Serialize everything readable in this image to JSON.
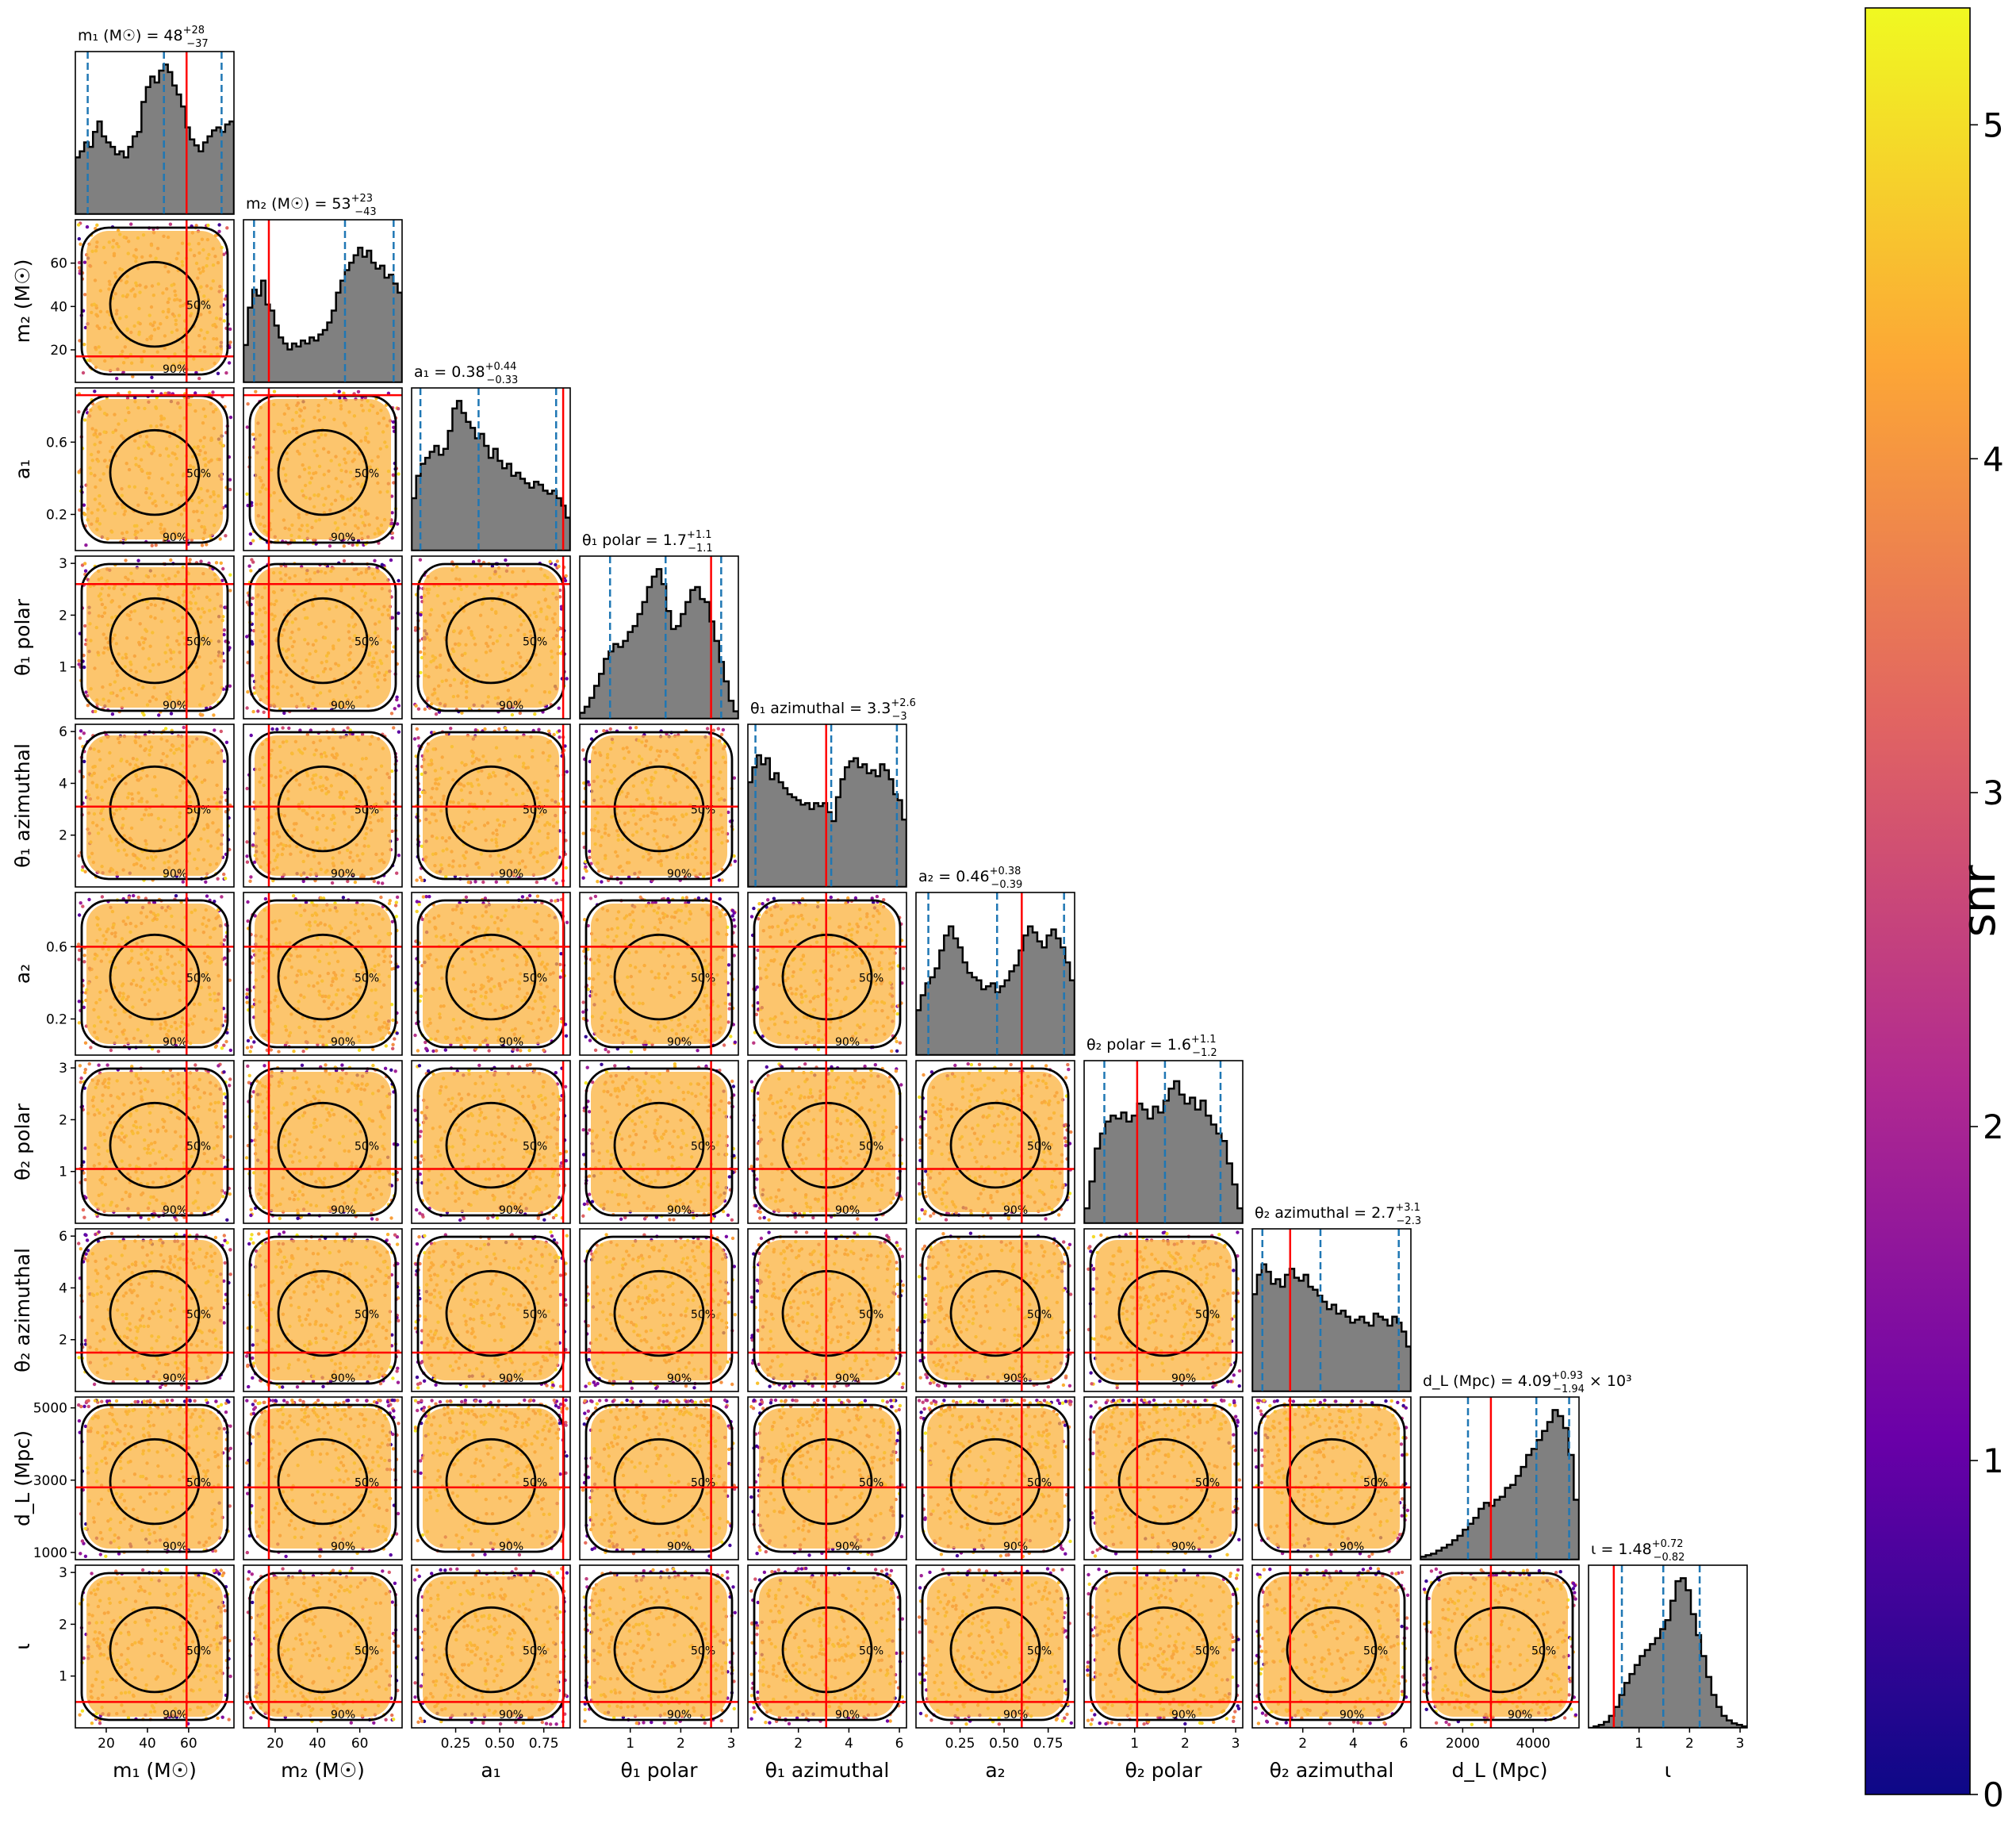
{
  "chart_data": {
    "type": "corner",
    "parameters": [
      {
        "key": "m1",
        "label": "m₁ (M☉)",
        "range": [
          5,
          82
        ],
        "ticks": [
          20,
          40,
          60
        ],
        "truth": 59,
        "title": "m₁ (M☉) = 48",
        "title_sup": "+28",
        "title_sub": "−37",
        "quantiles": [
          11,
          48,
          76
        ]
      },
      {
        "key": "m2",
        "label": "m₂ (M☉)",
        "range": [
          5,
          80
        ],
        "ticks": [
          20,
          40,
          60
        ],
        "truth": 17,
        "title": "m₂ (M☉) = 53",
        "title_sup": "+23",
        "title_sub": "−43",
        "quantiles": [
          10,
          53,
          76
        ]
      },
      {
        "key": "a1",
        "label": "a₁",
        "range": [
          0.0,
          0.9
        ],
        "ticks": [
          0.2,
          0.6
        ],
        "ticks_x": [
          0.25,
          0.5,
          0.75
        ],
        "ticklabels_x": [
          "0.25",
          "0.50",
          "0.75"
        ],
        "truth": 0.86,
        "title": "a₁ = 0.38",
        "title_sup": "+0.44",
        "title_sub": "−0.33",
        "quantiles": [
          0.05,
          0.38,
          0.82
        ]
      },
      {
        "key": "th1p",
        "label": "θ₁ polar",
        "range": [
          0.0,
          3.14
        ],
        "ticks": [
          1,
          2,
          3
        ],
        "truth": 2.6,
        "title": "θ₁ polar = 1.7",
        "title_sup": "+1.1",
        "title_sub": "−1.1",
        "quantiles": [
          0.6,
          1.7,
          2.8
        ]
      },
      {
        "key": "th1a",
        "label": "θ₁ azimuthal",
        "range": [
          0.0,
          6.28
        ],
        "ticks": [
          2,
          4,
          6
        ],
        "truth": 3.1,
        "title": "θ₁ azimuthal = 3.3",
        "title_sup": "+2.6",
        "title_sub": "−3",
        "quantiles": [
          0.3,
          3.3,
          5.9
        ]
      },
      {
        "key": "a2",
        "label": "a₂",
        "range": [
          0.0,
          0.9
        ],
        "ticks": [
          0.2,
          0.6
        ],
        "ticks_x": [
          0.25,
          0.5,
          0.75
        ],
        "ticklabels_x": [
          "0.25",
          "0.50",
          "0.75"
        ],
        "truth": 0.6,
        "title": "a₂ = 0.46",
        "title_sup": "+0.38",
        "title_sub": "−0.39",
        "quantiles": [
          0.07,
          0.46,
          0.84
        ]
      },
      {
        "key": "th2p",
        "label": "θ₂ polar",
        "range": [
          0.0,
          3.14
        ],
        "ticks": [
          1,
          2,
          3
        ],
        "truth": 1.05,
        "title": "θ₂ polar = 1.6",
        "title_sup": "+1.1",
        "title_sub": "−1.2",
        "quantiles": [
          0.4,
          1.6,
          2.7
        ]
      },
      {
        "key": "th2a",
        "label": "θ₂ azimuthal",
        "range": [
          0.0,
          6.28
        ],
        "ticks": [
          2,
          4,
          6
        ],
        "truth": 1.5,
        "title": "θ₂ azimuthal = 2.7",
        "title_sup": "+3.1",
        "title_sub": "−2.3",
        "quantiles": [
          0.4,
          2.7,
          5.8
        ]
      },
      {
        "key": "dl",
        "label": "d_L (Mpc)",
        "range": [
          800,
          5300
        ],
        "ticks": [
          1000,
          3000,
          5000
        ],
        "ticks_x": [
          2000,
          4000
        ],
        "truth": 2800,
        "title": "d_L (Mpc) = 4.09",
        "title_sup": "+0.93",
        "title_sub": "−1.94",
        "title_suffix": "× 10³",
        "quantiles": [
          2150,
          4090,
          5020
        ]
      },
      {
        "key": "iota",
        "label": "ι",
        "range": [
          0.0,
          3.14
        ],
        "ticks": [
          1,
          2,
          3
        ],
        "truth": 0.5,
        "title": "ι = 1.48",
        "title_sup": "+0.72",
        "title_sub": "−0.82",
        "quantiles": [
          0.66,
          1.48,
          2.2
        ]
      }
    ],
    "histograms": {
      "m1": [
        0.38,
        0.42,
        0.48,
        0.45,
        0.55,
        0.62,
        0.52,
        0.48,
        0.45,
        0.4,
        0.42,
        0.38,
        0.45,
        0.52,
        0.55,
        0.75,
        0.85,
        0.92,
        0.88,
        0.96,
        1.0,
        0.95,
        0.86,
        0.8,
        0.72,
        0.58,
        0.5,
        0.46,
        0.42,
        0.48,
        0.52,
        0.56,
        0.58,
        0.55,
        0.6,
        0.62
      ],
      "m2": [
        0.25,
        0.5,
        0.62,
        0.58,
        0.68,
        0.52,
        0.48,
        0.38,
        0.3,
        0.26,
        0.22,
        0.26,
        0.24,
        0.28,
        0.26,
        0.3,
        0.28,
        0.32,
        0.35,
        0.4,
        0.48,
        0.6,
        0.68,
        0.75,
        0.8,
        0.85,
        0.9,
        0.84,
        0.88,
        0.8,
        0.76,
        0.78,
        0.7,
        0.72,
        0.66,
        0.6
      ],
      "a1": [
        0.35,
        0.5,
        0.58,
        0.62,
        0.66,
        0.7,
        0.64,
        0.68,
        0.8,
        0.95,
        1.0,
        0.92,
        0.86,
        0.82,
        0.75,
        0.78,
        0.7,
        0.62,
        0.68,
        0.6,
        0.55,
        0.58,
        0.5,
        0.52,
        0.48,
        0.45,
        0.42,
        0.46,
        0.44,
        0.4,
        0.38,
        0.4,
        0.35,
        0.3,
        0.22
      ],
      "th1p": [
        0.04,
        0.08,
        0.14,
        0.22,
        0.3,
        0.4,
        0.45,
        0.5,
        0.48,
        0.52,
        0.58,
        0.62,
        0.7,
        0.78,
        0.88,
        0.95,
        1.0,
        0.9,
        0.72,
        0.6,
        0.62,
        0.7,
        0.78,
        0.86,
        0.88,
        0.8,
        0.78,
        0.65,
        0.52,
        0.38,
        0.25,
        0.12,
        0.05
      ],
      "th1a": [
        0.7,
        0.8,
        0.88,
        0.82,
        0.86,
        0.72,
        0.76,
        0.7,
        0.66,
        0.62,
        0.6,
        0.58,
        0.55,
        0.56,
        0.52,
        0.56,
        0.54,
        0.56,
        0.5,
        0.44,
        0.6,
        0.72,
        0.8,
        0.84,
        0.86,
        0.8,
        0.82,
        0.76,
        0.78,
        0.74,
        0.82,
        0.78,
        0.72,
        0.62,
        0.58,
        0.45
      ],
      "a2": [
        0.3,
        0.4,
        0.48,
        0.52,
        0.58,
        0.7,
        0.8,
        0.86,
        0.78,
        0.72,
        0.62,
        0.55,
        0.52,
        0.5,
        0.44,
        0.46,
        0.48,
        0.42,
        0.46,
        0.5,
        0.56,
        0.6,
        0.7,
        0.8,
        0.86,
        0.82,
        0.76,
        0.72,
        0.8,
        0.84,
        0.78,
        0.72,
        0.62,
        0.5
      ],
      "th2p": [
        0.1,
        0.28,
        0.5,
        0.6,
        0.68,
        0.72,
        0.7,
        0.74,
        0.68,
        0.72,
        0.8,
        0.76,
        0.7,
        0.78,
        0.74,
        0.82,
        0.9,
        0.95,
        0.86,
        0.8,
        0.84,
        0.76,
        0.82,
        0.72,
        0.66,
        0.6,
        0.55,
        0.4,
        0.26,
        0.1
      ],
      "th2a": [
        0.65,
        0.78,
        0.85,
        0.8,
        0.72,
        0.75,
        0.7,
        0.78,
        0.82,
        0.76,
        0.74,
        0.78,
        0.7,
        0.68,
        0.64,
        0.6,
        0.55,
        0.58,
        0.52,
        0.54,
        0.5,
        0.46,
        0.48,
        0.5,
        0.46,
        0.44,
        0.52,
        0.5,
        0.48,
        0.44,
        0.5,
        0.46,
        0.4,
        0.3
      ],
      "dl": [
        0.02,
        0.03,
        0.04,
        0.06,
        0.08,
        0.1,
        0.13,
        0.16,
        0.2,
        0.24,
        0.28,
        0.34,
        0.38,
        0.36,
        0.4,
        0.42,
        0.48,
        0.5,
        0.56,
        0.62,
        0.7,
        0.74,
        0.8,
        0.86,
        0.92,
        1.0,
        0.96,
        0.88,
        0.7,
        0.4
      ],
      "iota": [
        0.0,
        0.01,
        0.02,
        0.04,
        0.08,
        0.14,
        0.22,
        0.3,
        0.36,
        0.42,
        0.48,
        0.52,
        0.56,
        0.6,
        0.66,
        0.72,
        0.85,
        0.98,
        1.0,
        0.92,
        0.76,
        0.62,
        0.48,
        0.34,
        0.22,
        0.14,
        0.08,
        0.05,
        0.03,
        0.02,
        0.01
      ]
    },
    "contour_levels": [
      "50%",
      "90%"
    ],
    "colorbar": {
      "label": "snr",
      "ticks": [
        0,
        1,
        2,
        3,
        4,
        5
      ],
      "range": [
        0,
        5.35
      ],
      "colormap": [
        "#0d0887",
        "#6a00a8",
        "#b12a90",
        "#e16462",
        "#fca636",
        "#f0f921"
      ]
    },
    "colors": {
      "truth": "#ff0000",
      "quantile": "#1f77b4",
      "hist_fill": "#808080",
      "contour": "#000000"
    }
  }
}
